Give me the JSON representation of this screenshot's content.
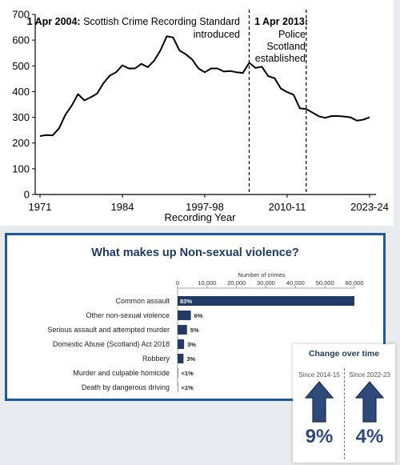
{
  "chart_data": [
    {
      "type": "line",
      "title": "",
      "xlabel": "Recording Year",
      "ylabel": "",
      "ylim": [
        0,
        700
      ],
      "yticks": [
        "0",
        "100",
        "200",
        "300",
        "400",
        "500",
        "600",
        "700"
      ],
      "xtick_labels": [
        "1971",
        "1984",
        "1997-98",
        "2010-11",
        "2023-24"
      ],
      "xtick_years": [
        1971,
        1984,
        1997,
        2010,
        2023
      ],
      "grid": false,
      "series": [
        {
          "color": "#000000",
          "x": [
            1971,
            1972,
            1973,
            1974,
            1975,
            1976,
            1977,
            1978,
            1979,
            1980,
            1981,
            1982,
            1983,
            1984,
            1985,
            1986,
            1987,
            1988,
            1989,
            1990,
            1991,
            1992,
            1993,
            1994,
            1995,
            1996,
            1997,
            1998,
            1999,
            2000,
            2001,
            2002,
            2003,
            2004,
            2005,
            2006,
            2007,
            2008,
            2009,
            2010,
            2011,
            2012,
            2013,
            2014,
            2015,
            2016,
            2017,
            2018,
            2019,
            2020,
            2021,
            2022,
            2023
          ],
          "y": [
            227,
            231,
            230,
            257,
            310,
            345,
            390,
            366,
            378,
            392,
            432,
            462,
            475,
            502,
            490,
            490,
            508,
            495,
            520,
            560,
            615,
            610,
            560,
            545,
            525,
            490,
            475,
            490,
            490,
            478,
            480,
            475,
            472,
            512,
            492,
            497,
            460,
            452,
            412,
            398,
            388,
            335,
            332,
            318,
            304,
            298,
            305,
            305,
            303,
            300,
            287,
            291,
            300
          ]
        }
      ],
      "annotations": [
        {
          "date": "1 Apr 2004:",
          "text": "Scottish Crime Recording Standard",
          "text2": "introduced"
        },
        {
          "date": "1 Apr 2013:",
          "lines": [
            "Police",
            "Scotland",
            "established"
          ]
        }
      ]
    },
    {
      "type": "bar",
      "orientation": "horizontal",
      "title": "What makes up Non-sexual violence?",
      "axis_title": "Number of crimes",
      "xlim": [
        0,
        60000
      ],
      "xticks": [
        "0",
        "10,000",
        "20,000",
        "30,000",
        "40,000",
        "50,000",
        "60,000"
      ],
      "categories": [
        "Common assault",
        "Other non-sexual violence",
        "Serious assault and attempted murder",
        "Domestic Abuse (Scotland) Act 2018",
        "Robbery",
        "Murder and culpable homicide",
        "Death by dangerous driving"
      ],
      "values": [
        60000,
        4500,
        3200,
        2200,
        2000,
        150,
        100
      ],
      "labels": [
        "83%",
        "6%",
        "5%",
        "3%",
        "3%",
        "<1%",
        "<1%"
      ],
      "bar_color": "#223b66"
    }
  ],
  "change": {
    "title": "Change over time",
    "items": [
      {
        "label": "Since 2014-15",
        "value": "9%"
      },
      {
        "label": "Since 2022-23",
        "value": "4%"
      }
    ]
  }
}
